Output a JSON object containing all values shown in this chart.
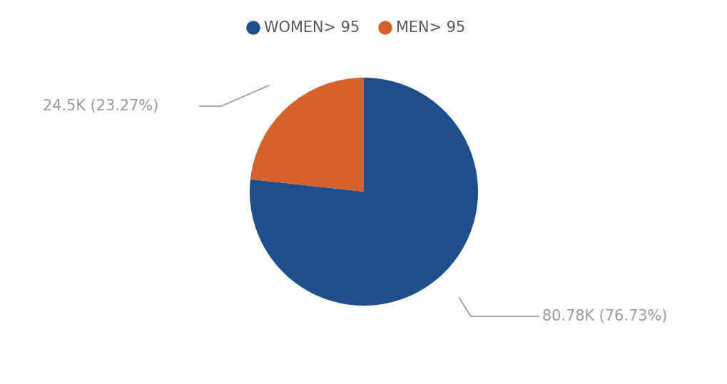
{
  "labels": [
    "WOMEN> 95",
    "MEN> 95"
  ],
  "values": [
    76.73,
    23.27
  ],
  "colors": [
    "#1F4E8C",
    "#D4622A"
  ],
  "legend_labels": [
    "WOMEN> 95",
    "MEN> 95"
  ],
  "annotation_women": "80.78K (76.73%)",
  "annotation_men": "24.5K (23.27%)",
  "annotation_color": "#999999",
  "annotation_fontsize": 15,
  "legend_fontsize": 15,
  "background_color": "#ffffff",
  "startangle": 90
}
